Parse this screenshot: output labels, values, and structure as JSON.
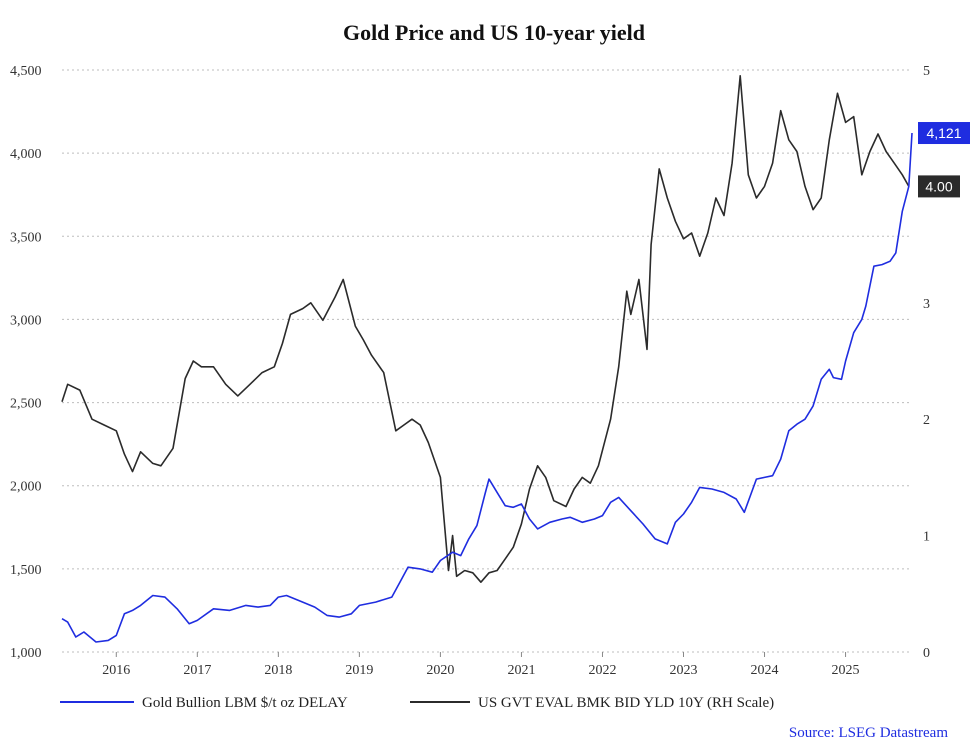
{
  "chart_data": {
    "type": "line",
    "title": "Gold Price and US 10-year yield",
    "xlabel": "",
    "ylabel": "",
    "x_range": [
      2015.33,
      2025.82
    ],
    "x_ticks": [
      2016,
      2017,
      2018,
      2019,
      2020,
      2021,
      2022,
      2023,
      2024,
      2025
    ],
    "x_tick_labels": [
      "2016",
      "2017",
      "2018",
      "2019",
      "2020",
      "2021",
      "2022",
      "2023",
      "2024",
      "2025"
    ],
    "ylim_left": [
      1000,
      4500
    ],
    "y_ticks_left": [
      1000,
      1500,
      2000,
      2500,
      3000,
      3500,
      4000,
      4500
    ],
    "y_tick_labels_left": [
      "1,000",
      "1,500",
      "2,000",
      "2,500",
      "3,000",
      "3,500",
      "4,000",
      "4,500"
    ],
    "ylim_right": [
      0,
      5
    ],
    "y_ticks_right": [
      0,
      1,
      2,
      3,
      4,
      5
    ],
    "y_tick_labels_right": [
      "0",
      "1",
      "2",
      "3",
      "4",
      "5"
    ],
    "grid": true,
    "legend_position": "bottom",
    "source": "Source: LSEG Datastream",
    "series": [
      {
        "name": "Gold Bullion LBM $/t oz DELAY",
        "axis": "left",
        "color": "#1f2de0",
        "last_value_label": "4,121",
        "x": [
          2015.33,
          2015.4,
          2015.5,
          2015.6,
          2015.75,
          2015.9,
          2016.0,
          2016.1,
          2016.2,
          2016.3,
          2016.45,
          2016.6,
          2016.75,
          2016.9,
          2017.0,
          2017.2,
          2017.4,
          2017.6,
          2017.75,
          2017.9,
          2018.0,
          2018.1,
          2018.3,
          2018.45,
          2018.6,
          2018.75,
          2018.9,
          2019.0,
          2019.2,
          2019.4,
          2019.5,
          2019.6,
          2019.75,
          2019.9,
          2020.0,
          2020.15,
          2020.25,
          2020.35,
          2020.45,
          2020.55,
          2020.6,
          2020.7,
          2020.8,
          2020.9,
          2021.0,
          2021.1,
          2021.2,
          2021.35,
          2021.5,
          2021.6,
          2021.75,
          2021.9,
          2022.0,
          2022.1,
          2022.2,
          2022.35,
          2022.5,
          2022.65,
          2022.8,
          2022.9,
          2023.0,
          2023.1,
          2023.2,
          2023.35,
          2023.5,
          2023.65,
          2023.75,
          2023.9,
          2024.0,
          2024.1,
          2024.2,
          2024.3,
          2024.4,
          2024.5,
          2024.6,
          2024.7,
          2024.8,
          2024.85,
          2024.95,
          2025.0,
          2025.1,
          2025.2,
          2025.25,
          2025.35,
          2025.45,
          2025.55,
          2025.62,
          2025.7,
          2025.78,
          2025.82
        ],
        "values": [
          1200,
          1180,
          1090,
          1120,
          1060,
          1070,
          1100,
          1230,
          1250,
          1280,
          1340,
          1330,
          1260,
          1170,
          1190,
          1260,
          1250,
          1280,
          1270,
          1280,
          1330,
          1340,
          1300,
          1270,
          1220,
          1210,
          1230,
          1280,
          1300,
          1330,
          1420,
          1510,
          1500,
          1480,
          1550,
          1600,
          1580,
          1680,
          1760,
          1950,
          2040,
          1960,
          1880,
          1870,
          1890,
          1800,
          1740,
          1780,
          1800,
          1810,
          1780,
          1800,
          1820,
          1900,
          1930,
          1850,
          1770,
          1680,
          1650,
          1780,
          1830,
          1900,
          1990,
          1980,
          1960,
          1920,
          1840,
          2040,
          2050,
          2060,
          2160,
          2330,
          2370,
          2400,
          2480,
          2640,
          2700,
          2650,
          2640,
          2750,
          2920,
          3000,
          3080,
          3320,
          3330,
          3350,
          3400,
          3650,
          3800,
          4121
        ]
      },
      {
        "name": "US GVT EVAL BMK BID YLD 10Y (RH Scale)",
        "axis": "right",
        "color": "#2b2b2b",
        "last_value_label": "4.00",
        "x": [
          2015.33,
          2015.4,
          2015.55,
          2015.7,
          2015.85,
          2016.0,
          2016.1,
          2016.2,
          2016.3,
          2016.45,
          2016.55,
          2016.7,
          2016.85,
          2016.95,
          2017.05,
          2017.2,
          2017.35,
          2017.5,
          2017.65,
          2017.8,
          2017.95,
          2018.05,
          2018.15,
          2018.3,
          2018.4,
          2018.55,
          2018.7,
          2018.8,
          2018.95,
          2019.05,
          2019.15,
          2019.3,
          2019.45,
          2019.55,
          2019.65,
          2019.75,
          2019.85,
          2020.0,
          2020.1,
          2020.15,
          2020.2,
          2020.3,
          2020.4,
          2020.5,
          2020.6,
          2020.7,
          2020.8,
          2020.9,
          2021.0,
          2021.1,
          2021.2,
          2021.3,
          2021.4,
          2021.55,
          2021.65,
          2021.75,
          2021.85,
          2021.95,
          2022.1,
          2022.2,
          2022.3,
          2022.35,
          2022.45,
          2022.55,
          2022.6,
          2022.7,
          2022.8,
          2022.9,
          2023.0,
          2023.1,
          2023.2,
          2023.3,
          2023.4,
          2023.5,
          2023.6,
          2023.7,
          2023.8,
          2023.9,
          2024.0,
          2024.1,
          2024.2,
          2024.3,
          2024.4,
          2024.5,
          2024.6,
          2024.7,
          2024.8,
          2024.9,
          2025.0,
          2025.1,
          2025.2,
          2025.3,
          2025.4,
          2025.5,
          2025.6,
          2025.7,
          2025.78
        ],
        "values": [
          2.15,
          2.3,
          2.25,
          2.0,
          1.95,
          1.9,
          1.7,
          1.55,
          1.72,
          1.62,
          1.6,
          1.75,
          2.35,
          2.5,
          2.45,
          2.45,
          2.3,
          2.2,
          2.3,
          2.4,
          2.45,
          2.65,
          2.9,
          2.95,
          3.0,
          2.85,
          3.05,
          3.2,
          2.8,
          2.68,
          2.55,
          2.4,
          1.9,
          1.95,
          2.0,
          1.95,
          1.8,
          1.5,
          0.7,
          1.0,
          0.65,
          0.7,
          0.68,
          0.6,
          0.68,
          0.7,
          0.8,
          0.9,
          1.1,
          1.4,
          1.6,
          1.5,
          1.3,
          1.25,
          1.4,
          1.5,
          1.45,
          1.6,
          2.0,
          2.45,
          3.1,
          2.9,
          3.2,
          2.6,
          3.5,
          4.15,
          3.9,
          3.7,
          3.55,
          3.6,
          3.4,
          3.6,
          3.9,
          3.75,
          4.2,
          4.95,
          4.1,
          3.9,
          4.0,
          4.2,
          4.65,
          4.4,
          4.3,
          4.0,
          3.8,
          3.9,
          4.4,
          4.8,
          4.55,
          4.6,
          4.1,
          4.3,
          4.45,
          4.3,
          4.2,
          4.1,
          4.0
        ]
      }
    ]
  }
}
